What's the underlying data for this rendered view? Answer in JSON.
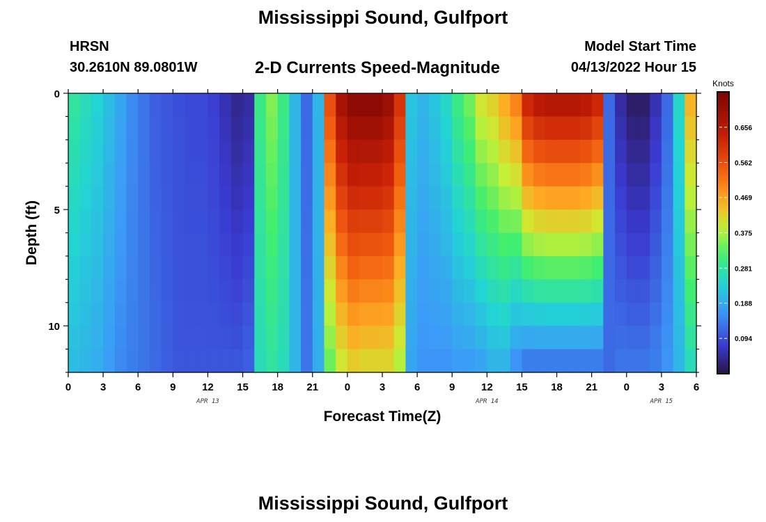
{
  "header": {
    "title": "Mississippi Sound, Gulfport",
    "station_id": "HRSN",
    "coordinates": "30.2610N  89.0801W",
    "subtitle": "2-D Currents Speed-Magnitude",
    "model_start_label": "Model Start Time",
    "model_start_value": "04/13/2022 Hour 15"
  },
  "footer": {
    "title": "Mississippi Sound, Gulfport"
  },
  "chart_data": {
    "type": "heatmap",
    "xlabel": "Forecast Time(Z)",
    "ylabel": "Depth (ft)",
    "x_unit": "hours since 00Z Apr 13",
    "xlim": [
      0,
      54
    ],
    "ylim": [
      0,
      12
    ],
    "y_inverted": true,
    "x_ticks": [
      0,
      3,
      6,
      9,
      12,
      15,
      18,
      21,
      24,
      27,
      30,
      33,
      36,
      39,
      42,
      45,
      48,
      51,
      54
    ],
    "x_tick_labels": [
      "0",
      "3",
      "6",
      "9",
      "12",
      "15",
      "18",
      "21",
      "0",
      "3",
      "6",
      "9",
      "12",
      "15",
      "18",
      "21",
      "0",
      "3",
      "6"
    ],
    "y_ticks": [
      0,
      5,
      10
    ],
    "y_tick_labels": [
      "0",
      "5",
      "10"
    ],
    "date_labels": [
      {
        "x": 12,
        "text": "APR 13"
      },
      {
        "x": 36,
        "text": "APR 14"
      },
      {
        "x": 51,
        "text": "APR 15"
      }
    ],
    "colorbar": {
      "title": "Knots",
      "min": 0,
      "max": 0.75,
      "ticks": [
        0.094,
        0.188,
        0.281,
        0.375,
        0.469,
        0.562,
        0.656
      ],
      "tick_labels": [
        "0.094",
        "0.188",
        "0.281",
        "0.375",
        "0.469",
        "0.562",
        "0.656"
      ]
    },
    "grid": false,
    "time_columns": [
      0,
      1,
      2,
      3,
      4,
      5,
      6,
      7,
      8,
      9,
      10,
      11,
      12,
      13,
      14,
      15,
      16,
      17,
      18,
      19,
      20,
      21,
      22,
      23,
      24,
      25,
      26,
      27,
      28,
      29,
      30,
      31,
      32,
      33,
      34,
      35,
      36,
      37,
      38,
      39,
      40,
      41,
      42,
      43,
      44,
      45,
      46,
      47,
      48,
      49,
      50,
      51,
      52,
      53
    ],
    "depth_rows": [
      0,
      1,
      2,
      3,
      4,
      5,
      6,
      7,
      8,
      9,
      10,
      11
    ],
    "speed_profiles": {
      "surface_knots": [
        0.28,
        0.26,
        0.24,
        0.21,
        0.18,
        0.15,
        0.13,
        0.11,
        0.1,
        0.095,
        0.09,
        0.09,
        0.08,
        0.06,
        0.04,
        0.05,
        0.3,
        0.35,
        0.3,
        0.2,
        0.12,
        0.2,
        0.56,
        0.68,
        0.72,
        0.72,
        0.72,
        0.7,
        0.6,
        0.22,
        0.2,
        0.22,
        0.25,
        0.3,
        0.34,
        0.4,
        0.42,
        0.46,
        0.5,
        0.62,
        0.65,
        0.66,
        0.66,
        0.66,
        0.65,
        0.62,
        0.12,
        0.05,
        0.02,
        0.02,
        0.06,
        0.12,
        0.25,
        0.45
      ],
      "bottom_knots": [
        0.21,
        0.2,
        0.19,
        0.17,
        0.15,
        0.14,
        0.13,
        0.12,
        0.11,
        0.1,
        0.1,
        0.1,
        0.1,
        0.1,
        0.1,
        0.11,
        0.26,
        0.28,
        0.26,
        0.2,
        0.13,
        0.19,
        0.34,
        0.4,
        0.43,
        0.42,
        0.42,
        0.42,
        0.38,
        0.18,
        0.16,
        0.16,
        0.16,
        0.17,
        0.17,
        0.18,
        0.2,
        0.2,
        0.16,
        0.14,
        0.14,
        0.14,
        0.14,
        0.14,
        0.14,
        0.14,
        0.12,
        0.13,
        0.13,
        0.13,
        0.14,
        0.16,
        0.2,
        0.26
      ]
    }
  }
}
